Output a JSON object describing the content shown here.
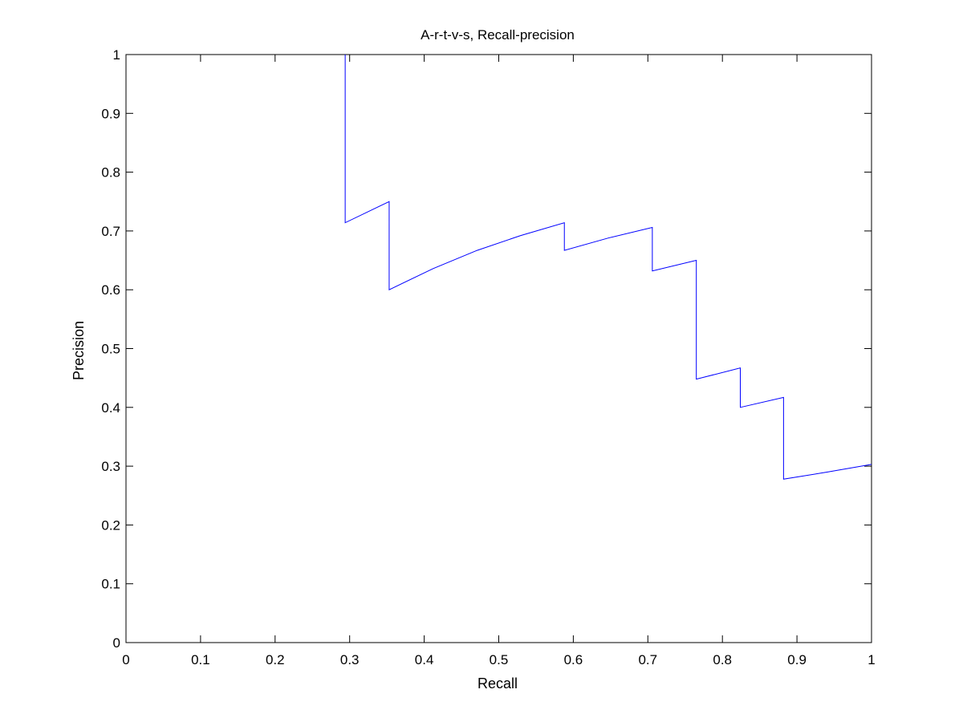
{
  "chart_data": {
    "type": "line",
    "title": "A-r-t-v-s, Recall-precision",
    "xlabel": "Recall",
    "ylabel": "Precision",
    "xlim": [
      0,
      1
    ],
    "ylim": [
      0,
      1
    ],
    "xticks": [
      "0",
      "0.1",
      "0.2",
      "0.3",
      "0.4",
      "0.5",
      "0.6",
      "0.7",
      "0.8",
      "0.9",
      "1"
    ],
    "yticks": [
      "0",
      "0.1",
      "0.2",
      "0.3",
      "0.4",
      "0.5",
      "0.6",
      "0.7",
      "0.8",
      "0.9",
      "1"
    ],
    "grid": false,
    "legend": "none",
    "series": [
      {
        "color": "#0000ff",
        "x": [
          0.294,
          0.294,
          0.353,
          0.353,
          0.412,
          0.471,
          0.529,
          0.588,
          0.588,
          0.647,
          0.706,
          0.706,
          0.765,
          0.765,
          0.824,
          0.824,
          0.882,
          0.882,
          0.941,
          1.0
        ],
        "y": [
          1.0,
          0.714,
          0.75,
          0.6,
          0.636,
          0.667,
          0.692,
          0.714,
          0.667,
          0.688,
          0.706,
          0.632,
          0.65,
          0.448,
          0.467,
          0.4,
          0.417,
          0.278,
          0.29,
          0.303
        ]
      }
    ]
  }
}
